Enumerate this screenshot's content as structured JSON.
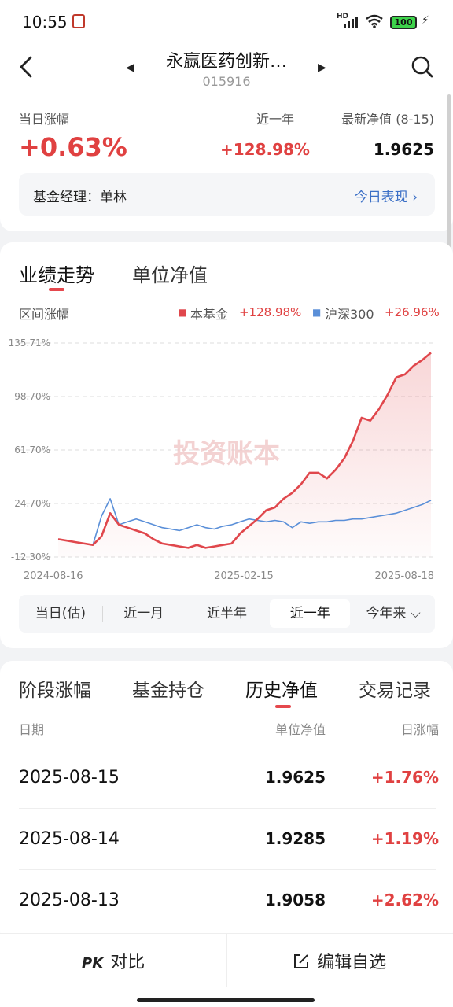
{
  "status": {
    "time": "10:55",
    "network": "HD",
    "battery": "100"
  },
  "header": {
    "title": "永赢医药创新…",
    "code": "015916"
  },
  "summary": {
    "day_change_label": "当日涨幅",
    "day_change_value": "+0.63%",
    "year_label": "近一年",
    "year_value": "+128.98%",
    "nav_label": "最新净值 (8-15)",
    "nav_value": "1.9625",
    "manager_text": "基金经理：单林",
    "today_link": "今日表现 ›"
  },
  "chart_tabs": {
    "perf": "业绩走势",
    "unit": "单位净值"
  },
  "chart_section": {
    "range_label": "区间涨幅",
    "legend_fund_name": "本基金",
    "legend_fund_value": "+128.98%",
    "legend_index_name": "沪深300",
    "legend_index_value": "+26.96%",
    "watermark": "投资账本"
  },
  "chart_data": {
    "type": "line",
    "x_ticks": [
      "2024-08-16",
      "2025-02-15",
      "2025-08-18"
    ],
    "y_ticks": [
      "135.71%",
      "98.70%",
      "61.70%",
      "24.70%",
      "-12.30%"
    ],
    "ylim": [
      -12.3,
      135.71
    ],
    "series": [
      {
        "name": "本基金",
        "color": "#e0474c",
        "values": [
          0,
          -1,
          -2,
          -3,
          -4,
          2,
          18,
          10,
          8,
          6,
          4,
          0,
          -3,
          -4,
          -5,
          -6,
          -4,
          -6,
          -5,
          -4,
          -3,
          4,
          9,
          14,
          20,
          22,
          28,
          32,
          38,
          46,
          46,
          42,
          48,
          56,
          68,
          84,
          82,
          90,
          100,
          112,
          114,
          120,
          124,
          128.98
        ]
      },
      {
        "name": "沪深300",
        "color": "#5a8fd8",
        "values": [
          0,
          -1,
          -2,
          -3,
          -4,
          16,
          28,
          10,
          12,
          14,
          12,
          10,
          8,
          7,
          6,
          8,
          10,
          8,
          7,
          9,
          10,
          12,
          14,
          13,
          12,
          13,
          12,
          8,
          12,
          11,
          12,
          12,
          13,
          13,
          14,
          14,
          15,
          16,
          17,
          18,
          20,
          22,
          24,
          26.96
        ]
      }
    ],
    "grid": true
  },
  "ranges": [
    {
      "label": "当日(估)",
      "active": false
    },
    {
      "label": "近一月",
      "active": false
    },
    {
      "label": "近半年",
      "active": false
    },
    {
      "label": "近一年",
      "active": true
    },
    {
      "label": "今年来 ⌵",
      "active": false
    }
  ],
  "hist_tabs": [
    "阶段涨幅",
    "基金持仓",
    "历史净值",
    "交易记录"
  ],
  "hist_headers": {
    "date": "日期",
    "nav": "单位净值",
    "change": "日涨幅"
  },
  "history": [
    {
      "date": "2025-08-15",
      "nav": "1.9625",
      "change": "+1.76%"
    },
    {
      "date": "2025-08-14",
      "nav": "1.9285",
      "change": "+1.19%"
    },
    {
      "date": "2025-08-13",
      "nav": "1.9058",
      "change": "+2.62%"
    }
  ],
  "bottom": {
    "compare": "对比",
    "compare_icon": "PK",
    "edit": "编辑自选"
  }
}
